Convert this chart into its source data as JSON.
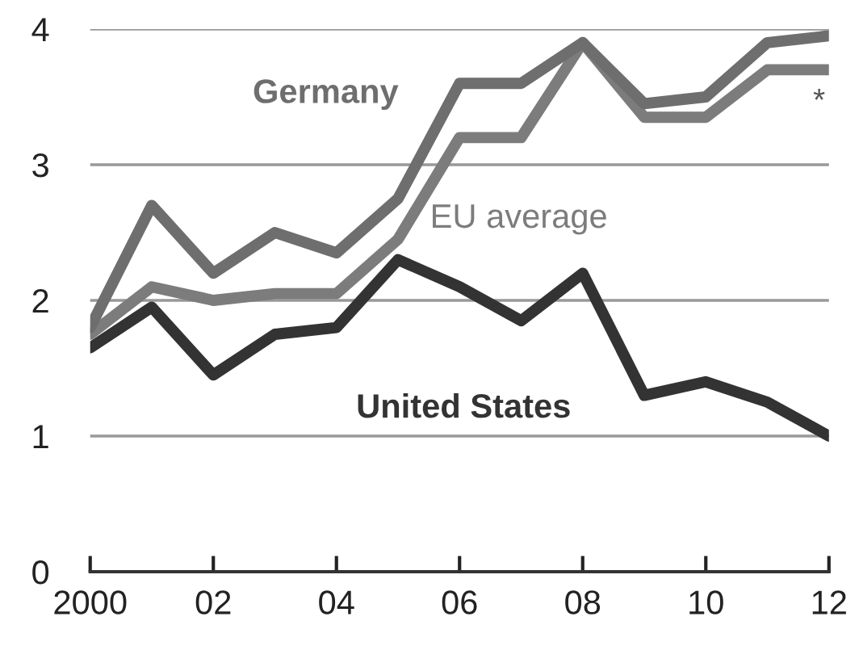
{
  "chart_data": {
    "type": "line",
    "x": [
      2000,
      2001,
      2002,
      2003,
      2004,
      2005,
      2006,
      2007,
      2008,
      2009,
      2010,
      2011,
      2012
    ],
    "series": [
      {
        "name": "Germany",
        "color": "#6e6e6e",
        "values": [
          1.8,
          2.7,
          2.2,
          2.5,
          2.35,
          2.75,
          3.6,
          3.6,
          3.9,
          3.45,
          3.5,
          3.9,
          3.95
        ]
      },
      {
        "name": "EU average",
        "color": "#7c7c7c",
        "values": [
          1.75,
          2.1,
          2.0,
          2.05,
          2.05,
          2.45,
          3.2,
          3.2,
          3.9,
          3.35,
          3.35,
          3.7,
          3.7
        ]
      },
      {
        "name": "United States",
        "color": "#333333",
        "values": [
          1.65,
          1.95,
          1.45,
          1.75,
          1.8,
          2.3,
          2.1,
          1.85,
          2.2,
          1.3,
          1.4,
          1.25,
          1.0
        ]
      }
    ],
    "annotations": [
      "*"
    ],
    "xlim": [
      2000,
      2012
    ],
    "xticks": [
      2000,
      {
        "value": 2002,
        "label": "02"
      },
      {
        "value": 2004,
        "label": "04"
      },
      {
        "value": 2006,
        "label": "06"
      },
      {
        "value": 2008,
        "label": "08"
      },
      {
        "value": 2010,
        "label": "10"
      },
      {
        "value": 2012,
        "label": "12"
      }
    ],
    "ylim": [
      0,
      4
    ],
    "yticks": [
      0,
      1,
      2,
      3,
      4
    ],
    "grid": "y",
    "line_style": "solid",
    "marker": "none"
  }
}
